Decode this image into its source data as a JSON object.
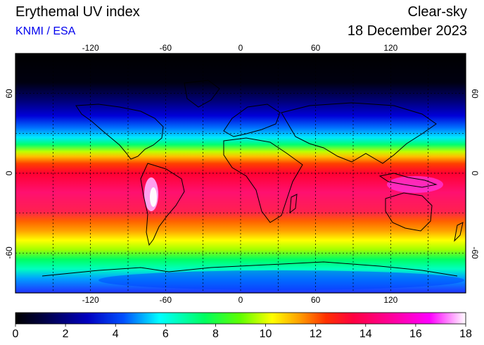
{
  "header": {
    "title": "Erythemal UV index",
    "credit": "KNMI / ESA",
    "condition": "Clear-sky",
    "date": "18 December 2023"
  },
  "map": {
    "lon_ticks": [
      "-120",
      "-60",
      "0",
      "60",
      "120"
    ],
    "lon_values": [
      -120,
      -60,
      0,
      60,
      120
    ],
    "lat_ticks": [
      "60",
      "0",
      "-60"
    ],
    "lat_values": [
      60,
      0,
      -60
    ],
    "lon_range": [
      -180,
      180
    ],
    "lat_range": [
      -90,
      90
    ],
    "grid_lons": [
      -150,
      -120,
      -90,
      -60,
      -30,
      0,
      30,
      60,
      90,
      120,
      150
    ],
    "grid_lats": [
      -60,
      -30,
      0,
      30,
      60
    ]
  },
  "colorbar": {
    "labels": [
      "0",
      "2",
      "4",
      "6",
      "8",
      "10",
      "12",
      "14",
      "16",
      "18"
    ],
    "values": [
      0,
      2,
      4,
      6,
      8,
      10,
      12,
      14,
      16,
      18
    ],
    "range": [
      0,
      18
    ],
    "colors": [
      "#000000",
      "#000040",
      "#0000c0",
      "#0050ff",
      "#00ffff",
      "#00ff60",
      "#60ff00",
      "#ffff00",
      "#ffa000",
      "#ff3000",
      "#ff0040",
      "#ff00a0",
      "#ff00ff",
      "#ffffff"
    ]
  }
}
